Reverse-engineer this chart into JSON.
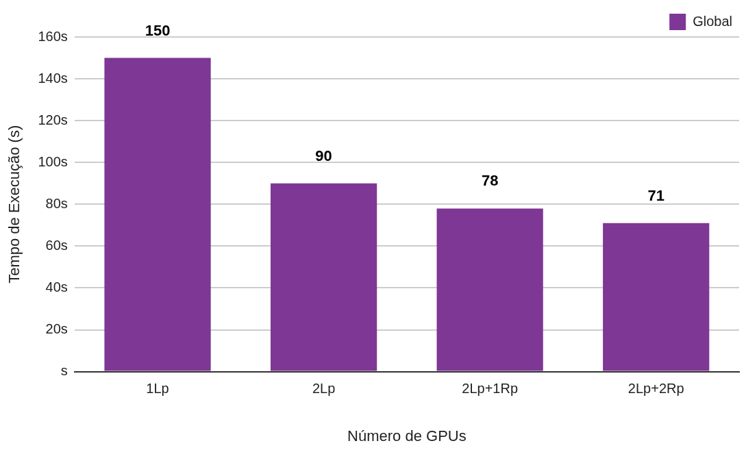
{
  "chart_data": {
    "type": "bar",
    "xlabel": "Número de GPUs",
    "ylabel": "Tempo de Execução (s)",
    "categories": [
      "1Lp",
      "2Lp",
      "2Lp+1Rp",
      "2Lp+2Rp"
    ],
    "series": [
      {
        "name": "Global",
        "color": "#7e3794",
        "values": [
          150,
          90,
          78,
          71
        ]
      }
    ],
    "ylim": [
      0,
      160
    ],
    "yticks": [
      {
        "value": 0,
        "label": "s"
      },
      {
        "value": 20,
        "label": "20s"
      },
      {
        "value": 40,
        "label": "40s"
      },
      {
        "value": 60,
        "label": "60s"
      },
      {
        "value": 80,
        "label": "80s"
      },
      {
        "value": 100,
        "label": "100s"
      },
      {
        "value": 120,
        "label": "120s"
      },
      {
        "value": 140,
        "label": "140s"
      },
      {
        "value": 160,
        "label": "160s"
      }
    ],
    "grid": "y",
    "legend": "top right",
    "data_labels": true
  }
}
